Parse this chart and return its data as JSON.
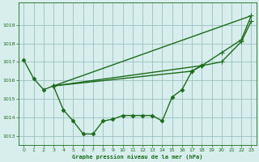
{
  "background_color": "#d8eeed",
  "grid_color": "#9bbfbf",
  "line_color": "#1a6b1a",
  "xlabel": "Graphe pression niveau de la mer (hPa)",
  "ylim": [
    1012.5,
    1020.2
  ],
  "xlim": [
    -0.5,
    23.5
  ],
  "yticks": [
    1013,
    1014,
    1015,
    1016,
    1017,
    1018,
    1019
  ],
  "xticks": [
    0,
    1,
    2,
    3,
    4,
    5,
    6,
    7,
    8,
    9,
    10,
    11,
    12,
    13,
    14,
    15,
    16,
    17,
    18,
    19,
    20,
    21,
    22,
    23
  ],
  "series": [
    {
      "x": [
        0,
        1,
        2,
        3,
        4,
        5,
        6,
        7,
        8,
        9,
        10,
        11,
        12,
        13,
        14,
        15,
        16,
        17,
        18
      ],
      "y": [
        1017.1,
        1016.1,
        1015.5,
        1015.7,
        1014.4,
        1013.8,
        1013.1,
        1013.1,
        1013.8,
        1013.9,
        1014.1,
        1014.1,
        1014.1,
        1014.1,
        1013.8,
        1015.1,
        1015.5,
        1016.5,
        1016.8
      ],
      "marker": "D",
      "markersize": 2.5,
      "linewidth": 1.0,
      "zorder": 4
    },
    {
      "x": [
        3,
        23
      ],
      "y": [
        1015.7,
        1019.5
      ],
      "marker": null,
      "markersize": 0,
      "linewidth": 1.0,
      "zorder": 2
    },
    {
      "x": [
        3,
        18,
        20,
        22,
        23
      ],
      "y": [
        1015.7,
        1016.8,
        1017.5,
        1018.2,
        1019.5
      ],
      "marker": "+",
      "markersize": 4,
      "linewidth": 1.0,
      "zorder": 3
    },
    {
      "x": [
        3,
        17,
        18,
        20,
        22,
        23
      ],
      "y": [
        1015.7,
        1016.5,
        1016.8,
        1017.0,
        1018.1,
        1019.2
      ],
      "marker": "+",
      "markersize": 4,
      "linewidth": 1.0,
      "zorder": 3
    }
  ],
  "figsize": [
    3.2,
    2.0
  ],
  "dpi": 100
}
